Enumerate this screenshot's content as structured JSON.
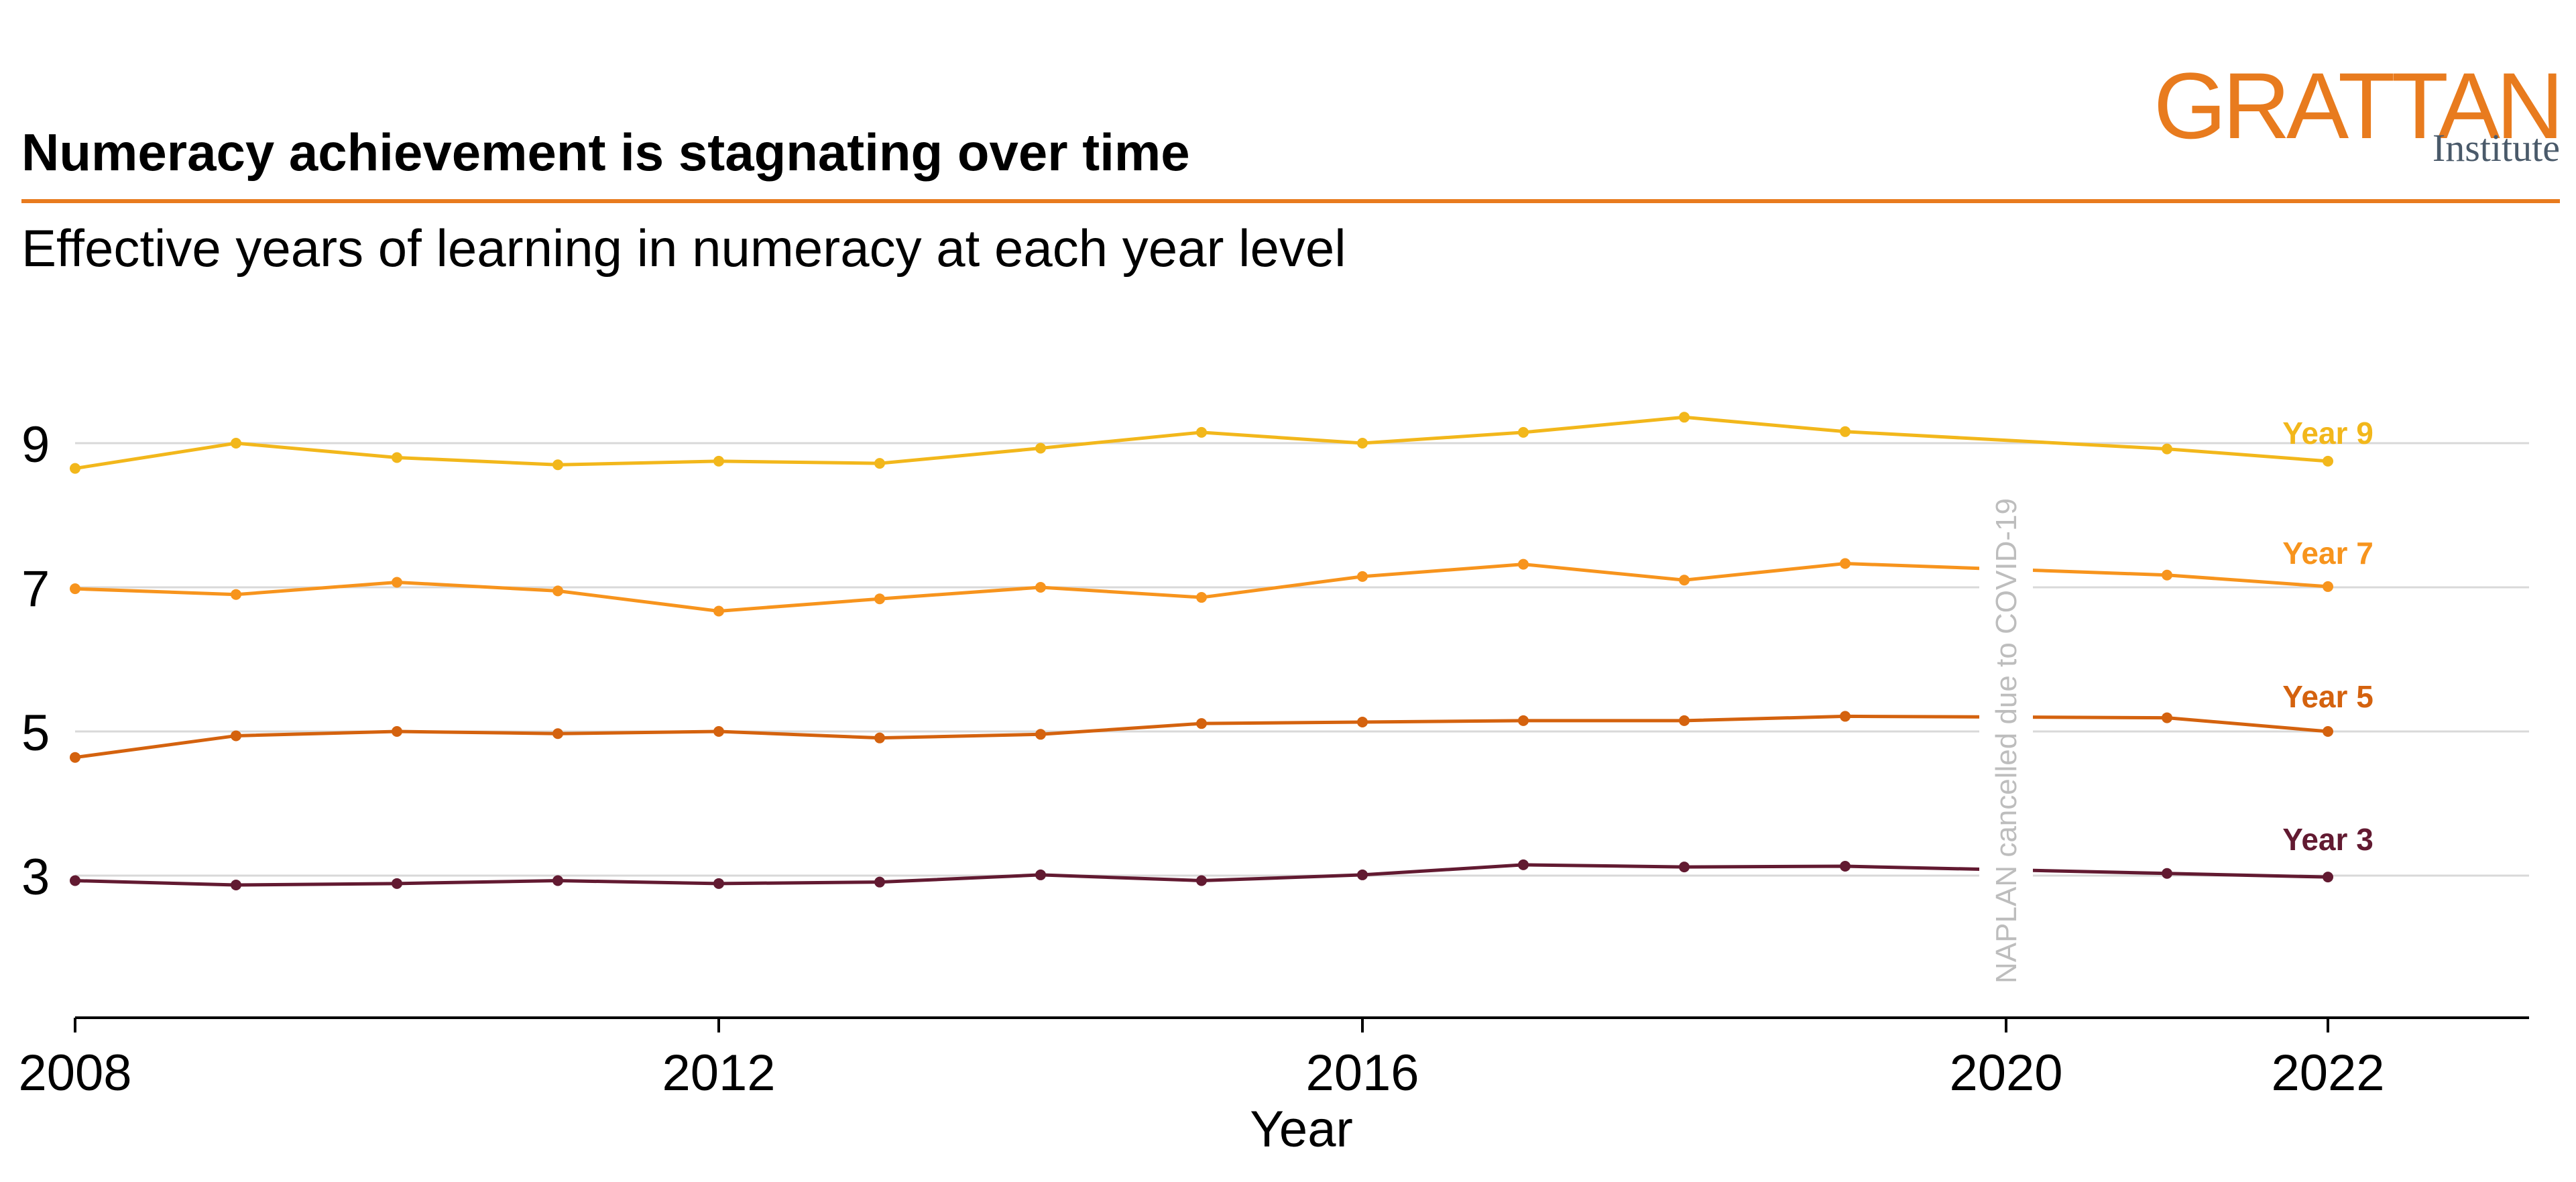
{
  "header": {
    "title": "Numeracy achievement is stagnating over time",
    "subtitle": "Effective years of learning in numeracy at each year level",
    "logo_word": "GRATTAN",
    "logo_sub": "Institute",
    "accent_color": "#E87B1E"
  },
  "chart_data": {
    "type": "line",
    "title": "Numeracy achievement is stagnating over time",
    "subtitle": "Effective years of learning in numeracy at each year level",
    "xlabel": "Year",
    "ylabel": "",
    "xlim": [
      2008,
      2023
    ],
    "ylim": [
      1,
      10.5
    ],
    "xticks": [
      2008,
      2012,
      2016,
      2020,
      2022
    ],
    "yticks": [
      3,
      5,
      7,
      9
    ],
    "grid": "horizontal",
    "annotation": "NAPLAN cancelled due to COVID-19",
    "annotation_x": 2020,
    "x": [
      2008,
      2009,
      2010,
      2011,
      2012,
      2013,
      2014,
      2015,
      2016,
      2017,
      2018,
      2019,
      2021,
      2022
    ],
    "series": [
      {
        "name": "Year 9",
        "color": "#F2B71B",
        "values": [
          8.65,
          9.0,
          8.8,
          8.7,
          8.75,
          8.72,
          8.93,
          9.15,
          9.0,
          9.15,
          9.36,
          9.16,
          8.92,
          8.75
        ]
      },
      {
        "name": "Year 7",
        "color": "#F7941D",
        "values": [
          6.98,
          6.9,
          7.07,
          6.95,
          6.67,
          6.84,
          7.0,
          6.86,
          7.15,
          7.32,
          7.1,
          7.33,
          7.17,
          7.01
        ]
      },
      {
        "name": "Year 5",
        "color": "#D4620E",
        "values": [
          4.64,
          4.94,
          5.0,
          4.97,
          5.0,
          4.91,
          4.96,
          5.11,
          5.13,
          5.15,
          5.15,
          5.21,
          5.19,
          5.0
        ]
      },
      {
        "name": "Year 3",
        "color": "#621A31",
        "values": [
          2.93,
          2.87,
          2.89,
          2.93,
          2.89,
          2.91,
          3.01,
          2.93,
          3.01,
          3.15,
          3.12,
          3.13,
          3.03,
          2.98
        ]
      }
    ]
  }
}
